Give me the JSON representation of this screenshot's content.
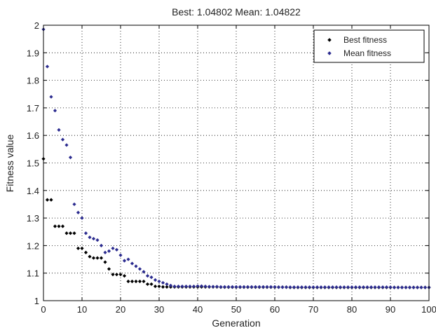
{
  "chart_data": {
    "type": "scatter",
    "title": "Best: 1.04802 Mean: 1.04822",
    "xlabel": "Generation",
    "ylabel": "Fitness value",
    "xlim": [
      0,
      100
    ],
    "ylim": [
      1,
      2
    ],
    "xticks": [
      0,
      10,
      20,
      30,
      40,
      50,
      60,
      70,
      80,
      90,
      100
    ],
    "yticks": [
      1,
      1.1,
      1.2,
      1.3,
      1.4,
      1.5,
      1.6,
      1.7,
      1.8,
      1.9,
      2
    ],
    "grid": true,
    "legend_position": "top-right",
    "series": [
      {
        "name": "Best fitness",
        "color": "#000000",
        "x": [
          0,
          1,
          2,
          3,
          4,
          5,
          6,
          7,
          8,
          9,
          10,
          11,
          12,
          13,
          14,
          15,
          16,
          17,
          18,
          19,
          20,
          21,
          22,
          23,
          24,
          25,
          26,
          27,
          28,
          29,
          30,
          31,
          32,
          33,
          34,
          35,
          36,
          37,
          38,
          39,
          40,
          41,
          42,
          43,
          44,
          45,
          46,
          47,
          48,
          49,
          50,
          51,
          52,
          53,
          54,
          55,
          56,
          57,
          58,
          59,
          60,
          61,
          62,
          63,
          64,
          65,
          66,
          67,
          68,
          69,
          70,
          71,
          72,
          73,
          74,
          75,
          76,
          77,
          78,
          79,
          80,
          81,
          82,
          83,
          84,
          85,
          86,
          87,
          88,
          89,
          90,
          91,
          92,
          93,
          94,
          95,
          96,
          97,
          98,
          99,
          100
        ],
        "y": [
          1.515,
          1.366,
          1.366,
          1.27,
          1.27,
          1.27,
          1.245,
          1.245,
          1.245,
          1.19,
          1.19,
          1.175,
          1.16,
          1.155,
          1.155,
          1.155,
          1.14,
          1.115,
          1.095,
          1.095,
          1.095,
          1.09,
          1.07,
          1.07,
          1.07,
          1.07,
          1.07,
          1.06,
          1.06,
          1.052,
          1.052,
          1.05,
          1.05,
          1.05,
          1.05,
          1.05,
          1.05,
          1.05,
          1.05,
          1.05,
          1.05,
          1.05,
          1.05,
          1.05,
          1.05,
          1.05,
          1.049,
          1.049,
          1.049,
          1.049,
          1.049,
          1.049,
          1.049,
          1.049,
          1.049,
          1.049,
          1.049,
          1.049,
          1.049,
          1.049,
          1.049,
          1.049,
          1.049,
          1.049,
          1.048,
          1.048,
          1.048,
          1.048,
          1.048,
          1.048,
          1.048,
          1.048,
          1.048,
          1.048,
          1.048,
          1.048,
          1.048,
          1.048,
          1.048,
          1.048,
          1.048,
          1.048,
          1.048,
          1.048,
          1.048,
          1.048,
          1.048,
          1.048,
          1.048,
          1.048,
          1.048,
          1.048,
          1.048,
          1.048,
          1.048,
          1.048,
          1.048,
          1.048,
          1.048,
          1.048,
          1.048
        ]
      },
      {
        "name": "Mean fitness",
        "color": "#2b2b8f",
        "x": [
          0,
          1,
          2,
          3,
          4,
          5,
          6,
          7,
          8,
          9,
          10,
          11,
          12,
          13,
          14,
          15,
          16,
          17,
          18,
          19,
          20,
          21,
          22,
          23,
          24,
          25,
          26,
          27,
          28,
          29,
          30,
          31,
          32,
          33,
          34,
          35,
          36,
          37,
          38,
          39,
          40,
          41,
          42,
          43,
          44,
          45,
          46,
          47,
          48,
          49,
          50,
          51,
          52,
          53,
          54,
          55,
          56,
          57,
          58,
          59,
          60,
          61,
          62,
          63,
          64,
          65,
          66,
          67,
          68,
          69,
          70,
          71,
          72,
          73,
          74,
          75,
          76,
          77,
          78,
          79,
          80,
          81,
          82,
          83,
          84,
          85,
          86,
          87,
          88,
          89,
          90,
          91,
          92,
          93,
          94,
          95,
          96,
          97,
          98,
          99,
          100
        ],
        "y": [
          1.985,
          1.85,
          1.74,
          1.69,
          1.62,
          1.585,
          1.565,
          1.52,
          1.35,
          1.32,
          1.3,
          1.245,
          1.23,
          1.225,
          1.22,
          1.2,
          1.175,
          1.18,
          1.19,
          1.185,
          1.165,
          1.145,
          1.15,
          1.135,
          1.125,
          1.115,
          1.105,
          1.09,
          1.085,
          1.075,
          1.07,
          1.065,
          1.06,
          1.055,
          1.052,
          1.052,
          1.052,
          1.052,
          1.052,
          1.052,
          1.053,
          1.053,
          1.052,
          1.051,
          1.051,
          1.051,
          1.05,
          1.05,
          1.05,
          1.05,
          1.05,
          1.05,
          1.05,
          1.05,
          1.05,
          1.05,
          1.05,
          1.05,
          1.05,
          1.05,
          1.05,
          1.049,
          1.049,
          1.049,
          1.049,
          1.049,
          1.049,
          1.049,
          1.049,
          1.049,
          1.049,
          1.049,
          1.049,
          1.049,
          1.049,
          1.049,
          1.049,
          1.049,
          1.049,
          1.049,
          1.049,
          1.049,
          1.049,
          1.049,
          1.049,
          1.049,
          1.049,
          1.049,
          1.049,
          1.049,
          1.049,
          1.048,
          1.048,
          1.048,
          1.048,
          1.048,
          1.048,
          1.048,
          1.048,
          1.048,
          1.048
        ]
      }
    ]
  }
}
